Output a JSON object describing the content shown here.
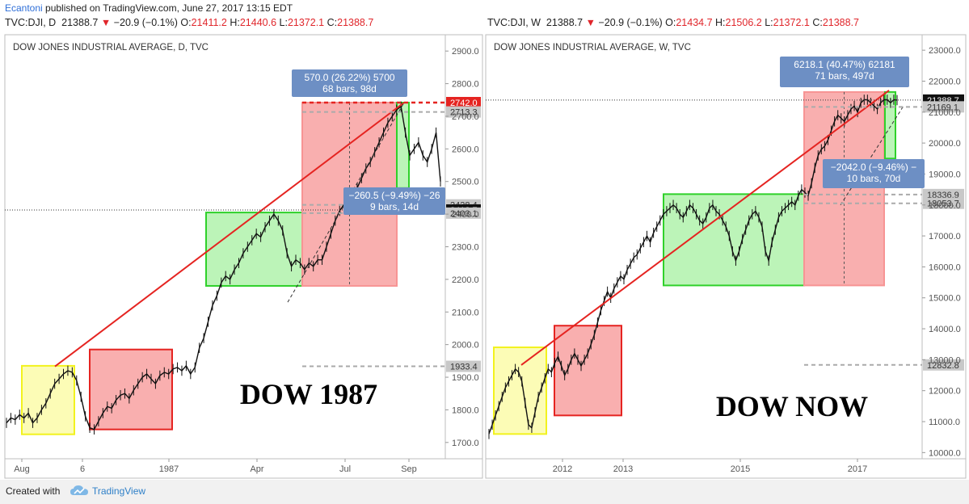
{
  "header": {
    "user": "Ecantoni",
    "published": " published on TradingView.com, June 27, 2017 13:15 EDT"
  },
  "quotes": {
    "left": {
      "symbol": "TVC:DJI, D",
      "last": "21388.7",
      "change": "−20.9 (−0.1%)",
      "o_label": "O:",
      "o": "21411.2",
      "h_label": "H:",
      "h": "21440.6",
      "l_label": "L:",
      "l": "21372.1",
      "c_label": "C:",
      "c": "21388.7"
    },
    "right": {
      "symbol": "TVC:DJI, W",
      "last": "21388.7",
      "change": "−20.9 (−0.1%)",
      "o_label": "O:",
      "o": "21434.7",
      "h_label": "H:",
      "h": "21506.2",
      "l_label": "L:",
      "l": "21372.1",
      "c_label": "C:",
      "c": "21388.7"
    }
  },
  "footer": {
    "created": "Created with",
    "brand": "TradingView"
  },
  "colors": {
    "up_box": "#a6f0a0",
    "down_box": "#f79494",
    "yellow_box": "#fbfb9e",
    "trend": "#e52421",
    "info_box": "#6d8fc4"
  },
  "chart_data": [
    {
      "type": "line",
      "title": "DOW JONES INDUSTRIAL AVERAGE, D, TVC",
      "annotation": "DOW 1987",
      "ylim": [
        1650,
        2950
      ],
      "y_ticks": [
        1700,
        1800,
        1900,
        2000,
        2100,
        2200,
        2300,
        2400,
        2500,
        2600,
        2700,
        2800,
        2900
      ],
      "y_tick_labels": [
        "1700.0",
        "1800.0",
        "1900.0",
        "2000.0",
        "2100.0",
        "2200.0",
        "2300.0",
        "2400.0",
        "2500.0",
        "2600.0",
        "2700.0",
        "2800.0",
        "2900.0"
      ],
      "x_ticks": [
        "Aug",
        "6",
        "1987",
        "Apr",
        "Jul",
        "Sep"
      ],
      "price_labels": [
        {
          "value": 2742.0,
          "text": "2742.0",
          "style": "red"
        },
        {
          "value": 2713.3,
          "text": "2713.3",
          "style": "grey"
        },
        {
          "value": 2428.4,
          "text": "2428.4",
          "style": "grey"
        },
        {
          "value": 2412.7,
          "text": "2412.7",
          "style": "black"
        },
        {
          "value": 2403.1,
          "text": "2403.1",
          "style": "grey"
        },
        {
          "value": 1933.4,
          "text": "1933.4",
          "style": "grey"
        }
      ],
      "measure_up": {
        "line1": "570.0 (26.22%) 5700",
        "line2": "68 bars, 98d"
      },
      "measure_down": {
        "line1": "−260.5 (−9.49%) −26",
        "line2": "9 bars, 14d"
      },
      "series": [
        {
          "x": [
            0,
            3,
            6,
            9,
            12,
            15,
            18,
            21,
            24,
            27,
            30,
            33,
            36,
            39,
            42,
            45,
            48,
            51,
            54,
            57,
            60,
            63,
            66,
            69,
            72,
            75,
            78,
            81,
            84,
            87,
            90,
            93,
            96,
            99,
            102,
            105,
            108,
            111,
            114,
            117,
            120,
            123,
            126,
            129,
            132,
            135,
            138,
            141,
            144,
            147,
            150,
            153,
            156,
            159,
            162,
            165,
            168,
            171,
            174,
            177,
            180,
            183,
            186,
            189,
            192,
            195,
            198,
            201,
            204,
            207,
            210,
            213,
            216,
            219,
            222,
            225,
            228,
            231,
            234,
            237,
            240,
            243,
            246,
            249,
            252,
            255,
            258,
            261,
            264,
            267,
            270,
            273,
            276,
            279,
            282,
            285,
            288,
            291,
            294,
            297
          ],
          "values": [
            1760,
            1775,
            1770,
            1785,
            1775,
            1790,
            1760,
            1775,
            1800,
            1820,
            1850,
            1880,
            1895,
            1910,
            1920,
            1915,
            1890,
            1840,
            1780,
            1745,
            1740,
            1765,
            1790,
            1810,
            1805,
            1830,
            1845,
            1850,
            1835,
            1860,
            1880,
            1900,
            1910,
            1895,
            1880,
            1905,
            1915,
            1910,
            1925,
            1930,
            1920,
            1935,
            1910,
            1930,
            1990,
            2020,
            2070,
            2120,
            2150,
            2190,
            2210,
            2200,
            2230,
            2250,
            2280,
            2300,
            2320,
            2340,
            2330,
            2360,
            2380,
            2400,
            2380,
            2350,
            2280,
            2240,
            2260,
            2250,
            2230,
            2250,
            2240,
            2260,
            2260,
            2300,
            2340,
            2380,
            2410,
            2430,
            2420,
            2450,
            2480,
            2510,
            2540,
            2560,
            2590,
            2620,
            2650,
            2680,
            2700,
            2720,
            2730,
            2650,
            2580,
            2600,
            2620,
            2580,
            2560,
            2600,
            2650,
            2500
          ]
        }
      ]
    },
    {
      "type": "line",
      "title": "DOW JONES INDUSTRIAL AVERAGE, W, TVC",
      "annotation": "DOW NOW",
      "ylim": [
        9800,
        23500
      ],
      "y_ticks": [
        10000,
        11000,
        12000,
        13000,
        14000,
        15000,
        16000,
        17000,
        18000,
        19000,
        20000,
        21000,
        22000,
        23000
      ],
      "y_tick_labels": [
        "10000.0",
        "11000.0",
        "12000.0",
        "13000.0",
        "14000.0",
        "15000.0",
        "16000.0",
        "17000.0",
        "18000.0",
        "19000.0",
        "20000.0",
        "21000.0",
        "22000.0",
        "23000.0"
      ],
      "x_ticks": [
        "2012",
        "2013",
        "2015",
        "2017"
      ],
      "price_labels": [
        {
          "value": 21388.7,
          "text": "21388.7",
          "style": "black"
        },
        {
          "value": 21169.1,
          "text": "21169.1",
          "style": "grey"
        },
        {
          "value": 18336.9,
          "text": "18336.9",
          "style": "grey"
        },
        {
          "value": 18053.7,
          "text": "18053.7",
          "style": "grey"
        },
        {
          "value": 12832.8,
          "text": "12832.8",
          "style": "grey"
        }
      ],
      "measure_up": {
        "line1": "6218.1 (40.47%) 62181",
        "line2": "71 bars, 497d"
      },
      "measure_down": {
        "line1": "−2042.0 (−9.46%) −",
        "line2": "10 bars, 70d"
      },
      "series": [
        {
          "x": [
            0,
            4,
            8,
            12,
            16,
            20,
            24,
            28,
            32,
            36,
            40,
            44,
            48,
            52,
            56,
            60,
            64,
            68,
            72,
            76,
            80,
            84,
            88,
            92,
            96,
            100,
            104,
            108,
            112,
            116,
            120,
            124,
            128,
            132,
            136,
            140,
            144,
            148,
            152,
            156,
            160,
            164,
            168,
            172,
            176,
            180,
            184,
            188,
            192,
            196,
            200,
            204,
            208,
            212,
            216,
            220,
            224,
            228,
            232,
            236,
            240,
            244,
            248,
            252,
            256,
            260,
            264,
            268,
            272,
            276,
            280,
            284,
            288,
            292,
            296,
            300,
            304,
            308,
            312,
            316,
            320,
            324,
            328,
            332,
            336,
            340,
            344,
            348,
            352,
            356,
            360,
            364,
            368,
            372,
            376,
            380,
            384,
            388,
            392,
            396,
            400,
            404,
            408,
            412,
            416,
            420,
            424,
            428,
            432,
            436,
            440,
            444,
            448,
            452,
            456,
            460,
            464,
            468,
            472,
            476,
            480,
            484,
            488,
            492,
            496
          ],
          "values": [
            10600,
            10900,
            11200,
            11500,
            11800,
            12100,
            12300,
            12500,
            12700,
            12600,
            12300,
            11600,
            10900,
            10800,
            11300,
            11800,
            12100,
            12400,
            12700,
            12600,
            12900,
            13100,
            12800,
            12500,
            12700,
            13000,
            13200,
            13000,
            12800,
            13000,
            13200,
            13500,
            13800,
            14200,
            14600,
            14900,
            15200,
            15000,
            15300,
            15500,
            15700,
            15600,
            15900,
            16100,
            16300,
            16400,
            16600,
            16800,
            17000,
            16800,
            17100,
            17300,
            17500,
            17700,
            17800,
            17900,
            18000,
            17900,
            17700,
            17600,
            17800,
            18000,
            17900,
            17700,
            17500,
            17400,
            17600,
            17900,
            18000,
            17800,
            17700,
            17500,
            17300,
            17000,
            16500,
            16200,
            16500,
            16900,
            17200,
            17500,
            17700,
            17800,
            17600,
            17300,
            16500,
            16200,
            16800,
            17200,
            17600,
            17800,
            17900,
            18000,
            18100,
            18000,
            18300,
            18500,
            18400,
            18300,
            18700,
            19200,
            19600,
            19800,
            19900,
            20100,
            20400,
            20700,
            20900,
            20800,
            20700,
            20900,
            21100,
            21200,
            21000,
            21300,
            21400,
            21400,
            21300,
            21200,
            21100,
            21300,
            21400,
            21400,
            21300,
            21400,
            21389
          ]
        }
      ]
    }
  ]
}
